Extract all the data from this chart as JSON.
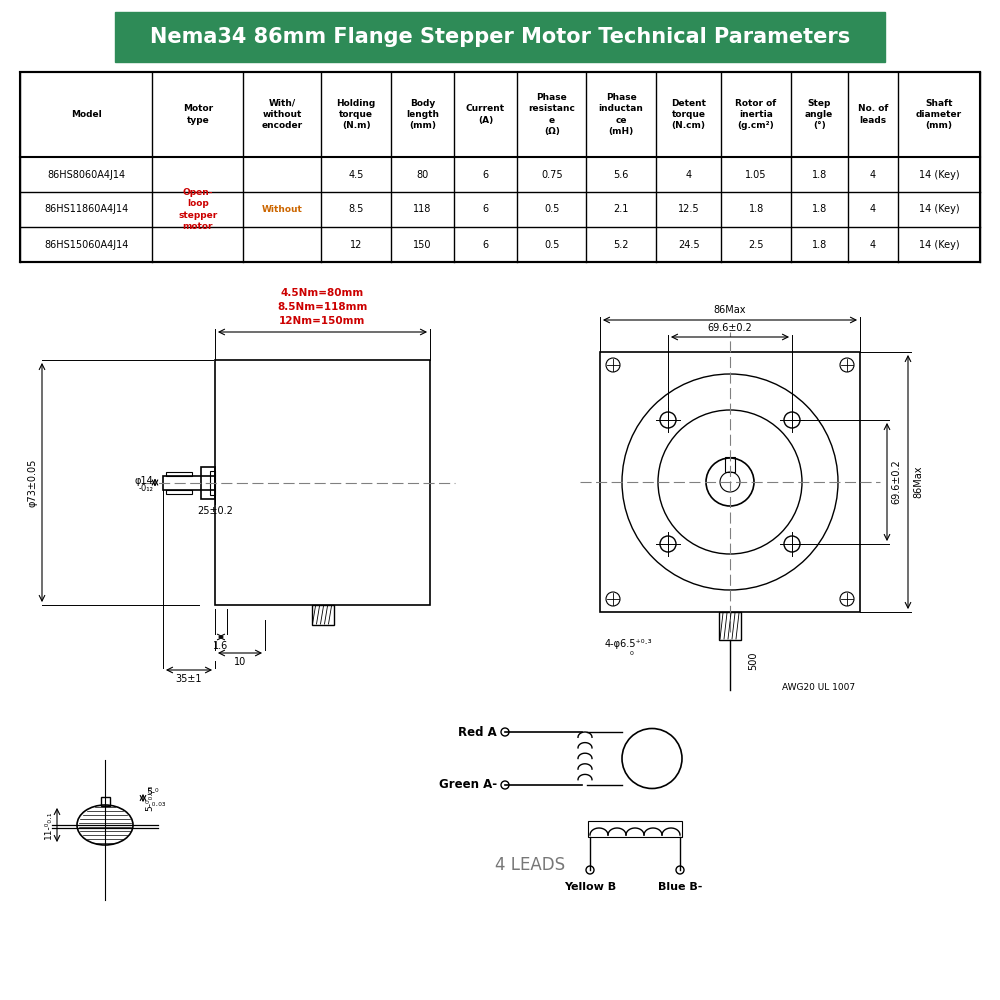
{
  "title": "Nema34 86mm Flange Stepper Motor Technical Parameters",
  "title_bg": "#2e8b57",
  "title_color": "white",
  "table_headers": [
    "Model",
    "Motor\ntype",
    "With/\nwithout\nencoder",
    "Holding\ntorque\n(N.m)",
    "Body\nlength\n(mm)",
    "Current\n(A)",
    "Phase\nresistanc\ne\n(Ω)",
    "Phase\ninductan\nce\n(mH)",
    "Detent\ntorque\n(N.cm)",
    "Rotor of\ninertia\n(g.cm²)",
    "Step\nangle\n(°)",
    "No. of\nleads",
    "Shaft\ndiameter\n(mm)"
  ],
  "table_rows": [
    [
      "86HS8060A4J14",
      "",
      "",
      "4.5",
      "80",
      "6",
      "0.75",
      "5.6",
      "4",
      "1.05",
      "1.8",
      "4",
      "14 (Key)"
    ],
    [
      "86HS11860A4J14",
      "Open-\nloop\nstepper\nmotor",
      "Without",
      "8.5",
      "118",
      "6",
      "0.5",
      "2.1",
      "12.5",
      "1.8",
      "1.8",
      "4",
      "14 (Key)"
    ],
    [
      "86HS15060A4J14",
      "",
      "",
      "12",
      "150",
      "6",
      "0.5",
      "5.2",
      "24.5",
      "2.5",
      "1.8",
      "4",
      "14 (Key)"
    ]
  ],
  "red_text_col1": "Open-\nloop\nstepper\nmotor",
  "orange_text_col2": "Without",
  "bg_color": "white",
  "red_color": "#cc0000",
  "orange_color": "#cc6600"
}
